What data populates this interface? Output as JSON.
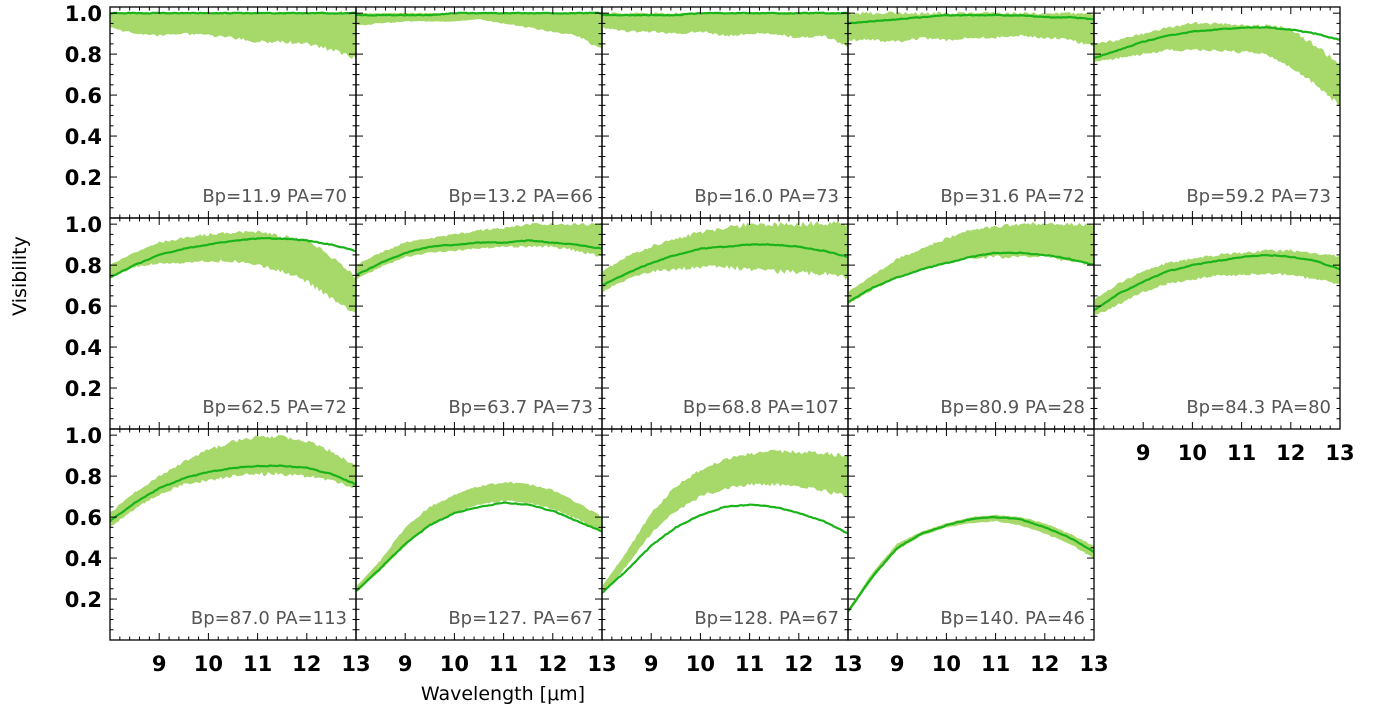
{
  "chart_data": {
    "type": "line",
    "layout": "small multiples, 3 rows x 5 columns, 14 panels",
    "xlabel": "Wavelength [μm]",
    "ylabel": "Visibility",
    "xlim": [
      8,
      13
    ],
    "ylim": [
      0,
      1.03
    ],
    "x_ticks": [
      9,
      10,
      11,
      12,
      13
    ],
    "y_ticks": [
      0.2,
      0.4,
      0.6,
      0.8,
      1.0
    ],
    "x_tick_labels": [
      "9",
      "10",
      "11",
      "12",
      "13"
    ],
    "y_tick_labels": [
      "0.2",
      "0.4",
      "0.6",
      "0.8",
      "1.0"
    ],
    "band_color": "#a6d96a",
    "line_color": "#1ab31a",
    "x": [
      8,
      8.5,
      9,
      9.5,
      10,
      10.5,
      11,
      11.5,
      12,
      12.5,
      13
    ],
    "panels": [
      {
        "label": "Bp=11.9  PA=70",
        "model": [
          1.0,
          1.0,
          1.0,
          1.0,
          1.0,
          1.0,
          1.0,
          1.0,
          1.0,
          1.0,
          1.0
        ],
        "band_low": [
          0.93,
          0.9,
          0.89,
          0.9,
          0.89,
          0.88,
          0.86,
          0.86,
          0.85,
          0.82,
          0.78
        ],
        "band_high": [
          1.0,
          1.0,
          1.0,
          1.0,
          1.0,
          1.0,
          1.0,
          1.0,
          1.0,
          1.0,
          1.0
        ]
      },
      {
        "label": "Bp=13.2  PA=66",
        "model": [
          0.99,
          0.99,
          0.99,
          0.99,
          1.0,
          1.0,
          1.0,
          1.0,
          1.0,
          1.0,
          1.0
        ],
        "band_low": [
          0.94,
          0.95,
          0.96,
          0.96,
          0.96,
          0.97,
          0.95,
          0.93,
          0.91,
          0.89,
          0.82
        ],
        "band_high": [
          1.0,
          1.0,
          1.0,
          1.0,
          1.0,
          1.0,
          1.0,
          1.0,
          1.0,
          1.0,
          1.0
        ]
      },
      {
        "label": "Bp=16.0  PA=73",
        "model": [
          0.99,
          0.99,
          0.99,
          0.99,
          1.0,
          1.0,
          1.0,
          1.0,
          1.0,
          1.0,
          1.0
        ],
        "band_low": [
          0.93,
          0.91,
          0.91,
          0.9,
          0.91,
          0.89,
          0.9,
          0.9,
          0.88,
          0.89,
          0.84
        ],
        "band_high": [
          1.0,
          1.0,
          1.0,
          1.0,
          1.0,
          1.0,
          1.0,
          1.0,
          1.0,
          1.0,
          1.0
        ]
      },
      {
        "label": "Bp=31.6  PA=72",
        "model": [
          0.95,
          0.96,
          0.97,
          0.98,
          0.99,
          0.99,
          0.99,
          0.99,
          0.98,
          0.98,
          0.97
        ],
        "band_low": [
          0.87,
          0.87,
          0.86,
          0.88,
          0.87,
          0.88,
          0.88,
          0.89,
          0.88,
          0.87,
          0.84
        ],
        "band_high": [
          1.0,
          1.0,
          1.0,
          1.0,
          1.0,
          1.0,
          1.0,
          1.0,
          1.0,
          1.0,
          1.0
        ]
      },
      {
        "label": "Bp=59.2  PA=73",
        "model": [
          0.78,
          0.82,
          0.86,
          0.89,
          0.91,
          0.92,
          0.93,
          0.93,
          0.92,
          0.9,
          0.87
        ],
        "band_low": [
          0.76,
          0.78,
          0.8,
          0.82,
          0.82,
          0.82,
          0.81,
          0.8,
          0.74,
          0.65,
          0.55
        ],
        "band_high": [
          0.85,
          0.87,
          0.9,
          0.93,
          0.95,
          0.95,
          0.94,
          0.94,
          0.92,
          0.84,
          0.75
        ]
      },
      {
        "label": "Bp=62.5  PA=72",
        "model": [
          0.74,
          0.8,
          0.85,
          0.88,
          0.9,
          0.92,
          0.93,
          0.93,
          0.92,
          0.9,
          0.87
        ],
        "band_low": [
          0.74,
          0.79,
          0.81,
          0.81,
          0.82,
          0.82,
          0.8,
          0.77,
          0.72,
          0.64,
          0.56
        ],
        "band_high": [
          0.8,
          0.86,
          0.91,
          0.93,
          0.95,
          0.96,
          0.96,
          0.94,
          0.92,
          0.84,
          0.74
        ]
      },
      {
        "label": "Bp=63.7  PA=73",
        "model": [
          0.75,
          0.81,
          0.86,
          0.89,
          0.9,
          0.91,
          0.91,
          0.92,
          0.91,
          0.9,
          0.88
        ],
        "band_low": [
          0.73,
          0.79,
          0.84,
          0.86,
          0.87,
          0.88,
          0.89,
          0.89,
          0.89,
          0.87,
          0.84
        ],
        "band_high": [
          0.8,
          0.86,
          0.91,
          0.93,
          0.95,
          0.97,
          0.98,
          1.0,
          1.0,
          1.0,
          1.0
        ]
      },
      {
        "label": "Bp=68.8  PA=107",
        "model": [
          0.7,
          0.76,
          0.81,
          0.85,
          0.88,
          0.89,
          0.9,
          0.9,
          0.89,
          0.87,
          0.84
        ],
        "band_low": [
          0.67,
          0.73,
          0.77,
          0.78,
          0.79,
          0.79,
          0.78,
          0.77,
          0.76,
          0.76,
          0.74
        ],
        "band_high": [
          0.77,
          0.84,
          0.89,
          0.93,
          0.96,
          0.98,
          1.0,
          1.0,
          1.0,
          1.0,
          1.0
        ]
      },
      {
        "label": "Bp=80.9  PA=28",
        "model": [
          0.62,
          0.69,
          0.74,
          0.78,
          0.81,
          0.84,
          0.86,
          0.86,
          0.85,
          0.83,
          0.8
        ],
        "band_low": [
          0.61,
          0.68,
          0.74,
          0.78,
          0.81,
          0.83,
          0.84,
          0.84,
          0.84,
          0.82,
          0.8
        ],
        "band_high": [
          0.67,
          0.75,
          0.83,
          0.88,
          0.93,
          0.97,
          0.99,
          1.0,
          1.0,
          1.0,
          1.0
        ]
      },
      {
        "label": "Bp=84.3  PA=80",
        "model": [
          0.58,
          0.66,
          0.72,
          0.77,
          0.8,
          0.82,
          0.84,
          0.85,
          0.84,
          0.82,
          0.78
        ],
        "band_low": [
          0.55,
          0.61,
          0.67,
          0.71,
          0.73,
          0.75,
          0.75,
          0.76,
          0.75,
          0.73,
          0.71
        ],
        "band_high": [
          0.63,
          0.71,
          0.77,
          0.81,
          0.83,
          0.85,
          0.86,
          0.87,
          0.87,
          0.86,
          0.84
        ]
      },
      {
        "label": "Bp=87.0  PA=113",
        "model": [
          0.58,
          0.67,
          0.74,
          0.79,
          0.82,
          0.84,
          0.85,
          0.85,
          0.84,
          0.81,
          0.76
        ],
        "band_low": [
          0.55,
          0.64,
          0.71,
          0.76,
          0.78,
          0.8,
          0.81,
          0.81,
          0.8,
          0.78,
          0.74
        ],
        "band_high": [
          0.62,
          0.72,
          0.8,
          0.87,
          0.93,
          0.97,
          0.99,
          0.99,
          0.97,
          0.92,
          0.85
        ]
      },
      {
        "label": "Bp=127.  PA=67",
        "model": [
          0.24,
          0.35,
          0.47,
          0.56,
          0.62,
          0.65,
          0.67,
          0.66,
          0.63,
          0.58,
          0.53
        ],
        "band_low": [
          0.23,
          0.34,
          0.46,
          0.56,
          0.62,
          0.66,
          0.68,
          0.67,
          0.64,
          0.59,
          0.53
        ],
        "band_high": [
          0.26,
          0.39,
          0.55,
          0.65,
          0.71,
          0.75,
          0.77,
          0.76,
          0.73,
          0.67,
          0.6
        ]
      },
      {
        "label": "Bp=128.  PA=67",
        "model": [
          0.23,
          0.34,
          0.46,
          0.55,
          0.61,
          0.65,
          0.66,
          0.65,
          0.62,
          0.58,
          0.52
        ],
        "band_low": [
          0.22,
          0.36,
          0.52,
          0.63,
          0.7,
          0.74,
          0.76,
          0.76,
          0.75,
          0.73,
          0.7
        ],
        "band_high": [
          0.26,
          0.43,
          0.62,
          0.75,
          0.83,
          0.88,
          0.91,
          0.92,
          0.92,
          0.91,
          0.9
        ]
      },
      {
        "label": "Bp=140.  PA=46",
        "model": [
          0.14,
          0.31,
          0.45,
          0.52,
          0.56,
          0.59,
          0.6,
          0.59,
          0.55,
          0.5,
          0.43
        ],
        "band_low": [
          0.13,
          0.3,
          0.44,
          0.51,
          0.55,
          0.57,
          0.58,
          0.56,
          0.52,
          0.47,
          0.4
        ],
        "band_high": [
          0.15,
          0.33,
          0.47,
          0.53,
          0.57,
          0.6,
          0.61,
          0.6,
          0.57,
          0.52,
          0.46
        ]
      }
    ]
  }
}
